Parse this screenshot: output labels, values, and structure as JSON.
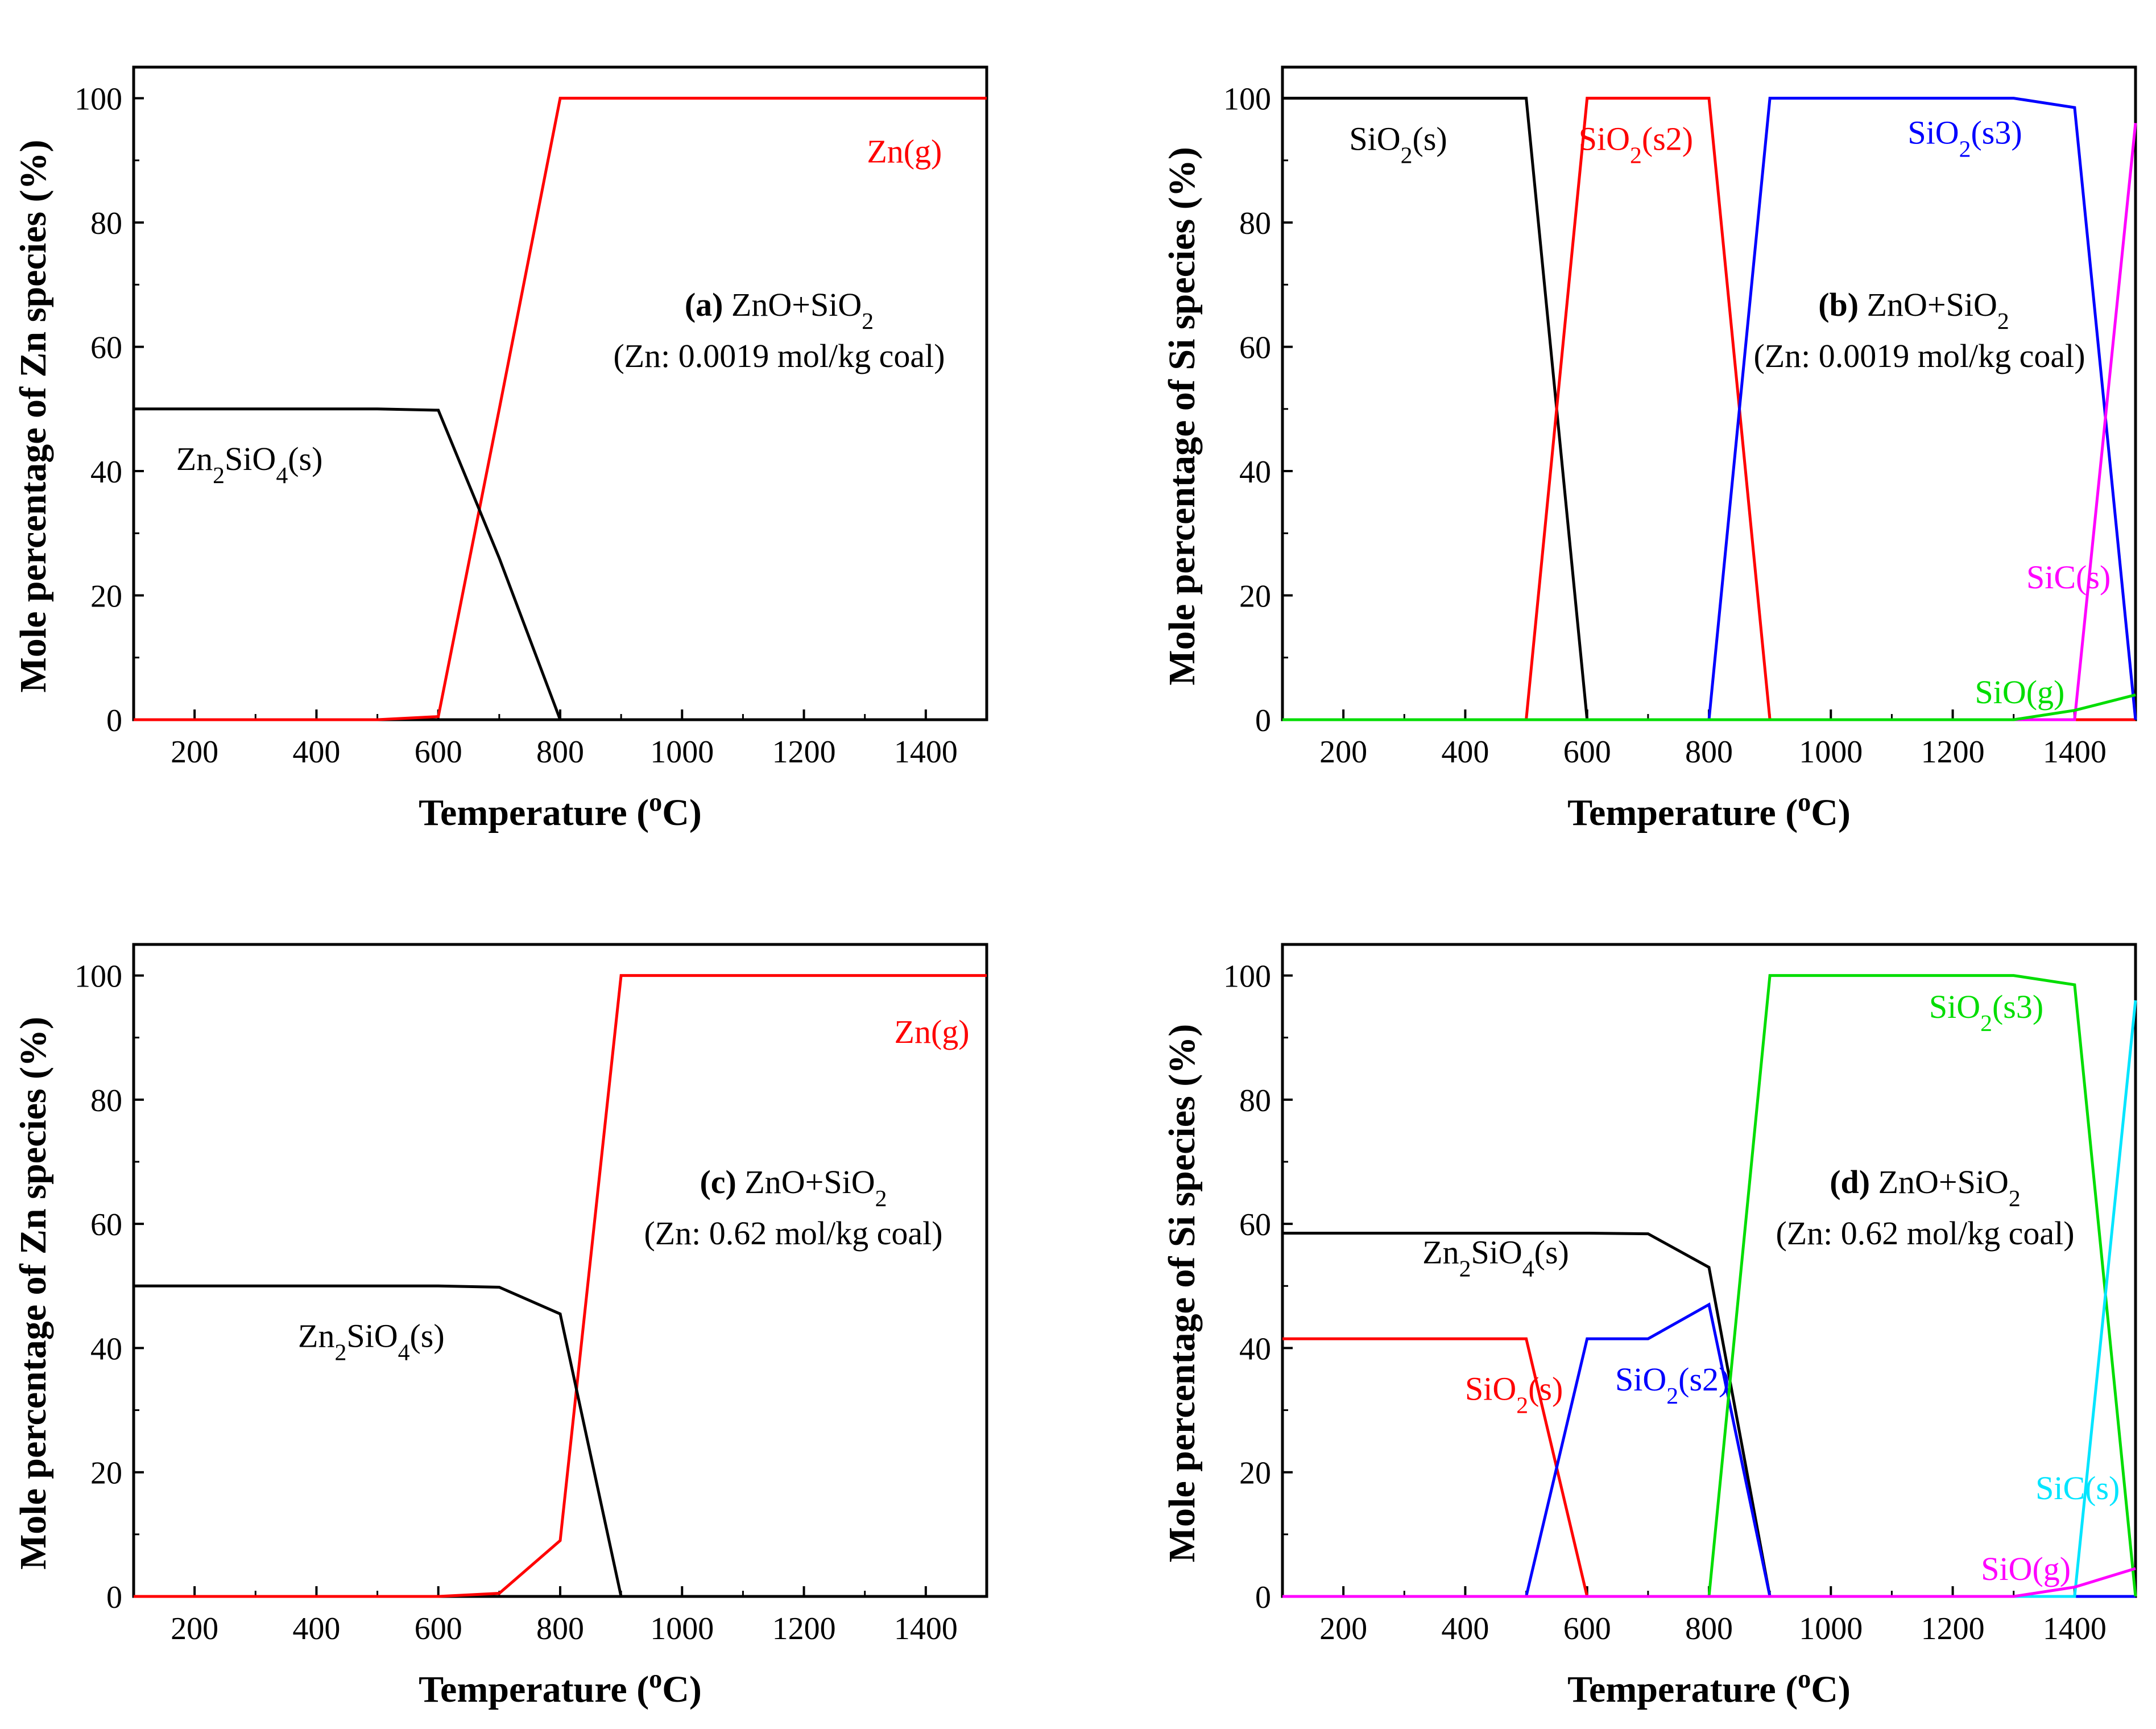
{
  "colors": {
    "black": "#000000",
    "red": "#ff0000",
    "blue": "#0000ff",
    "magenta": "#ff00ff",
    "green": "#00dd00",
    "cyan": "#00e5ff"
  },
  "chart_data": [
    {
      "type": "line",
      "panel": "a",
      "title_letter": "(a)",
      "title_sys": "ZnO+SiO",
      "title_sub": "2",
      "conc": "(Zn: 0.0019 mol/kg coal)",
      "xlabel": "Temperature (",
      "xlabel_sup": "o",
      "xlabel_end": "C)",
      "ylabel": "Mole percentage of Zn species (%)",
      "xlim": [
        100,
        1500
      ],
      "ylim": [
        0,
        105
      ],
      "xticks": [
        "200",
        "400",
        "600",
        "800",
        "1000",
        "1200",
        "1400"
      ],
      "yticks": [
        "0",
        "20",
        "40",
        "60",
        "80",
        "100"
      ],
      "series": [
        {
          "name": "Zn(g)",
          "label_parts": [
            "Zn(g)"
          ],
          "color": "#ff0000",
          "x": [
            100,
            500,
            600,
            700,
            800,
            900,
            1000,
            1100,
            1200,
            1300,
            1400,
            1500
          ],
          "y": [
            0,
            0,
            0.5,
            50,
            100,
            100,
            100,
            100,
            100,
            100,
            100,
            100
          ]
        },
        {
          "name": "Zn2SiO4(s)",
          "label_parts": [
            "Zn",
            "2",
            "SiO",
            "4",
            "(s)"
          ],
          "color": "#000000",
          "x": [
            100,
            500,
            600,
            700,
            800,
            900,
            1500
          ],
          "y": [
            50,
            50,
            49.8,
            26,
            0,
            0,
            0
          ]
        }
      ]
    },
    {
      "type": "line",
      "panel": "b",
      "title_letter": "(b)",
      "title_sys": "ZnO+SiO",
      "title_sub": "2",
      "conc": "(Zn: 0.0019 mol/kg coal)",
      "xlabel": "Temperature (",
      "xlabel_sup": "o",
      "xlabel_end": "C)",
      "ylabel": "Mole percentage of Si species (%)",
      "xlim": [
        100,
        1500
      ],
      "ylim": [
        0,
        105
      ],
      "xticks": [
        "200",
        "400",
        "600",
        "800",
        "1000",
        "1200",
        "1400"
      ],
      "yticks": [
        "0",
        "20",
        "40",
        "60",
        "80",
        "100"
      ],
      "series": [
        {
          "name": "SiO2(s)",
          "label_parts": [
            "SiO",
            "2",
            "(s)"
          ],
          "color": "#000000",
          "x": [
            100,
            500,
            600,
            700,
            1500
          ],
          "y": [
            100,
            100,
            0,
            0,
            0
          ]
        },
        {
          "name": "SiO2(s2)",
          "label_parts": [
            "SiO",
            "2",
            "(s2)"
          ],
          "color": "#ff0000",
          "x": [
            100,
            500,
            600,
            800,
            900,
            1500
          ],
          "y": [
            0,
            0,
            100,
            100,
            0,
            0
          ]
        },
        {
          "name": "SiO2(s3)",
          "label_parts": [
            "SiO",
            "2",
            "(s3)"
          ],
          "color": "#0000ff",
          "x": [
            100,
            800,
            900,
            1300,
            1400,
            1500
          ],
          "y": [
            0,
            0,
            100,
            100,
            98.5,
            0
          ]
        },
        {
          "name": "SiC(s)",
          "label_parts": [
            "SiC(s)"
          ],
          "color": "#ff00ff",
          "x": [
            100,
            1400,
            1500
          ],
          "y": [
            0,
            0,
            96
          ]
        },
        {
          "name": "SiO(g)",
          "label_parts": [
            "SiO(g)"
          ],
          "color": "#00dd00",
          "x": [
            100,
            1300,
            1400,
            1500
          ],
          "y": [
            0,
            0,
            1.5,
            4
          ]
        }
      ]
    },
    {
      "type": "line",
      "panel": "c",
      "title_letter": "(c)",
      "title_sys": "ZnO+SiO",
      "title_sub": "2",
      "conc": "(Zn: 0.62 mol/kg coal)",
      "xlabel": "Temperature (",
      "xlabel_sup": "o",
      "xlabel_end": "C)",
      "ylabel": "Mole percentage of Zn species (%)",
      "xlim": [
        100,
        1500
      ],
      "ylim": [
        0,
        105
      ],
      "xticks": [
        "200",
        "400",
        "600",
        "800",
        "1000",
        "1200",
        "1400"
      ],
      "yticks": [
        "0",
        "20",
        "40",
        "60",
        "80",
        "100"
      ],
      "series": [
        {
          "name": "Zn(g)",
          "label_parts": [
            "Zn(g)"
          ],
          "color": "#ff0000",
          "x": [
            100,
            600,
            700,
            800,
            900,
            1000,
            1100,
            1200,
            1300,
            1400,
            1500
          ],
          "y": [
            0,
            0,
            0.5,
            9,
            100,
            100,
            100,
            100,
            100,
            100,
            100
          ]
        },
        {
          "name": "Zn2SiO4(s)",
          "label_parts": [
            "Zn",
            "2",
            "SiO",
            "4",
            "(s)"
          ],
          "color": "#000000",
          "x": [
            100,
            600,
            700,
            800,
            900,
            1500
          ],
          "y": [
            50,
            50,
            49.8,
            45.5,
            0,
            0
          ]
        }
      ]
    },
    {
      "type": "line",
      "panel": "d",
      "title_letter": "(d)",
      "title_sys": "ZnO+SiO",
      "title_sub": "2",
      "conc": "(Zn: 0.62 mol/kg coal)",
      "xlabel": "Temperature (",
      "xlabel_sup": "o",
      "xlabel_end": "C)",
      "ylabel": "Mole percentage of Si species (%)",
      "xlim": [
        100,
        1500
      ],
      "ylim": [
        0,
        105
      ],
      "xticks": [
        "200",
        "400",
        "600",
        "800",
        "1000",
        "1200",
        "1400"
      ],
      "yticks": [
        "0",
        "20",
        "40",
        "60",
        "80",
        "100"
      ],
      "series": [
        {
          "name": "Zn2SiO4(s)",
          "label_parts": [
            "Zn",
            "2",
            "SiO",
            "4",
            "(s)"
          ],
          "color": "#000000",
          "x": [
            100,
            600,
            700,
            800,
            900,
            1500
          ],
          "y": [
            58.5,
            58.5,
            58.4,
            53,
            0,
            0
          ]
        },
        {
          "name": "SiO2(s)",
          "label_parts": [
            "SiO",
            "2",
            "(s)"
          ],
          "color": "#ff0000",
          "x": [
            100,
            500,
            600,
            1500
          ],
          "y": [
            41.5,
            41.5,
            0,
            0
          ]
        },
        {
          "name": "SiO2(s2)",
          "label_parts": [
            "SiO",
            "2",
            "(s2)"
          ],
          "color": "#0000ff",
          "x": [
            100,
            500,
            600,
            700,
            800,
            900,
            1500
          ],
          "y": [
            0,
            0,
            41.5,
            41.5,
            47,
            0,
            0
          ]
        },
        {
          "name": "SiO2(s3)",
          "label_parts": [
            "SiO",
            "2",
            "(s3)"
          ],
          "color": "#00dd00",
          "x": [
            100,
            800,
            900,
            1300,
            1400,
            1500
          ],
          "y": [
            0,
            0,
            100,
            100,
            98.5,
            0
          ]
        },
        {
          "name": "SiC(s)",
          "label_parts": [
            "SiC(s)"
          ],
          "color": "#00e5ff",
          "x": [
            100,
            1400,
            1500
          ],
          "y": [
            0,
            0,
            96
          ]
        },
        {
          "name": "SiO(g)",
          "label_parts": [
            "SiO(g)"
          ],
          "color": "#ff00ff",
          "x": [
            100,
            1300,
            1400,
            1500
          ],
          "y": [
            0,
            0,
            1.5,
            4.5
          ]
        }
      ]
    }
  ]
}
